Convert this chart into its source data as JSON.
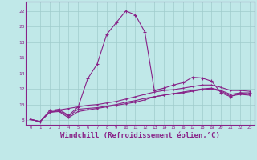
{
  "background_color": "#c0e8e8",
  "grid_color": "#a0cccc",
  "line_color": "#882288",
  "xlabel": "Windchill (Refroidissement éolien,°C)",
  "xlabel_fontsize": 6.5,
  "ytick_labels": [
    "8",
    "10",
    "12",
    "14",
    "16",
    "18",
    "20",
    "22"
  ],
  "ytick_values": [
    8,
    10,
    12,
    14,
    16,
    18,
    20,
    22
  ],
  "xtick_values": [
    0,
    1,
    2,
    3,
    4,
    5,
    6,
    7,
    8,
    9,
    10,
    11,
    12,
    13,
    14,
    15,
    16,
    17,
    18,
    19,
    20,
    21,
    22,
    23
  ],
  "xlim": [
    -0.5,
    23.5
  ],
  "ylim": [
    7.4,
    23.2
  ],
  "line1_x": [
    0,
    1,
    2,
    3,
    4,
    5,
    6,
    7,
    8,
    9,
    10,
    11,
    12,
    13,
    14,
    15,
    16,
    17,
    18,
    19,
    20,
    21,
    22,
    23
  ],
  "line1_y": [
    8.1,
    7.8,
    9.2,
    9.4,
    8.6,
    9.7,
    13.3,
    15.2,
    19.0,
    20.5,
    22.0,
    21.5,
    19.3,
    11.8,
    12.1,
    12.5,
    12.8,
    13.5,
    13.4,
    13.0,
    11.5,
    11.0,
    11.5,
    11.5
  ],
  "line2_x": [
    0,
    1,
    2,
    3,
    4,
    5,
    6,
    7,
    8,
    9,
    10,
    11,
    12,
    13,
    14,
    15,
    16,
    17,
    18,
    19,
    20,
    21,
    22,
    23
  ],
  "line2_y": [
    8.1,
    7.8,
    9.0,
    9.3,
    9.5,
    9.7,
    9.9,
    10.0,
    10.2,
    10.4,
    10.7,
    11.0,
    11.3,
    11.6,
    11.8,
    11.9,
    12.1,
    12.3,
    12.5,
    12.5,
    12.2,
    11.8,
    11.8,
    11.7
  ],
  "line3_x": [
    0,
    1,
    2,
    3,
    4,
    5,
    6,
    7,
    8,
    9,
    10,
    11,
    12,
    13,
    14,
    15,
    16,
    17,
    18,
    19,
    20,
    21,
    22,
    23
  ],
  "line3_y": [
    8.1,
    7.8,
    9.0,
    9.2,
    8.5,
    9.4,
    9.5,
    9.6,
    9.8,
    10.0,
    10.3,
    10.5,
    10.8,
    11.0,
    11.2,
    11.4,
    11.6,
    11.8,
    12.0,
    12.1,
    11.8,
    11.3,
    11.5,
    11.3
  ],
  "line4_x": [
    0,
    1,
    2,
    3,
    4,
    5,
    6,
    7,
    8,
    9,
    10,
    11,
    12,
    13,
    14,
    15,
    16,
    17,
    18,
    19,
    20,
    21,
    22,
    23
  ],
  "line4_y": [
    8.1,
    7.8,
    9.0,
    9.1,
    8.3,
    9.1,
    9.3,
    9.5,
    9.7,
    9.9,
    10.1,
    10.3,
    10.6,
    11.0,
    11.2,
    11.4,
    11.5,
    11.7,
    11.9,
    12.0,
    11.7,
    11.1,
    11.3,
    11.2
  ]
}
